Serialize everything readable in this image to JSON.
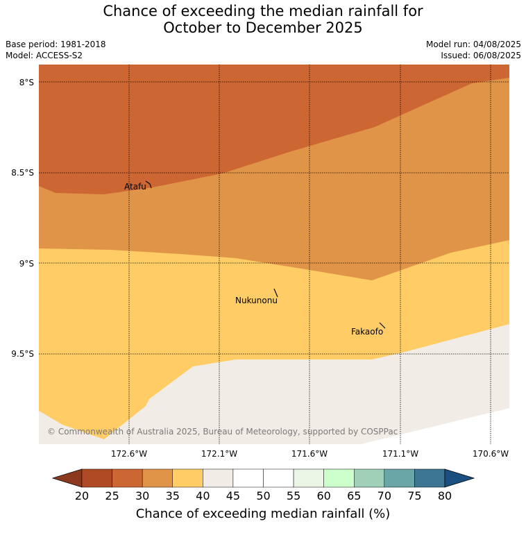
{
  "header": {
    "title_line1": "Chance of exceeding the median rainfall for",
    "title_line2": "October to December 2025",
    "base_period": "Base period: 1981-2018",
    "model": "Model: ACCESS-S2",
    "model_run": "Model run: 04/08/2025",
    "issued": "Issued: 06/08/2025"
  },
  "map": {
    "lat_labels": [
      "8°S",
      "8.5°S",
      "9°S",
      "9.5°S"
    ],
    "lon_labels": [
      "172.6°W",
      "172.1°W",
      "171.6°W",
      "171.1°W",
      "170.6°W"
    ],
    "places": [
      {
        "name": "Atafu"
      },
      {
        "name": "Nukunonu"
      },
      {
        "name": "Fakaofo"
      }
    ],
    "copyright": "© Commonwealth of Australia 2025, Bureau of Meteorology, supported by COSPPac",
    "zone_colors": {
      "25-30": "#cc6633",
      "30-35": "#e09448",
      "35-40": "#ffcc66",
      "40-45": "#f2ece6"
    }
  },
  "colorbar": {
    "ticks": [
      "20",
      "25",
      "30",
      "35",
      "40",
      "45",
      "50",
      "55",
      "60",
      "65",
      "70",
      "75",
      "80"
    ],
    "colors": [
      "#b04a25",
      "#cc6633",
      "#e09448",
      "#ffcc66",
      "#f2ece6",
      "#ffffff",
      "#ffffff",
      "#eaf5e6",
      "#ccffcc",
      "#a0d0b8",
      "#6aa6a8",
      "#3d7594"
    ],
    "under_color": "#8c3a1f",
    "over_color": "#1a4f80",
    "label": "Chance of exceeding median rainfall (%)"
  }
}
